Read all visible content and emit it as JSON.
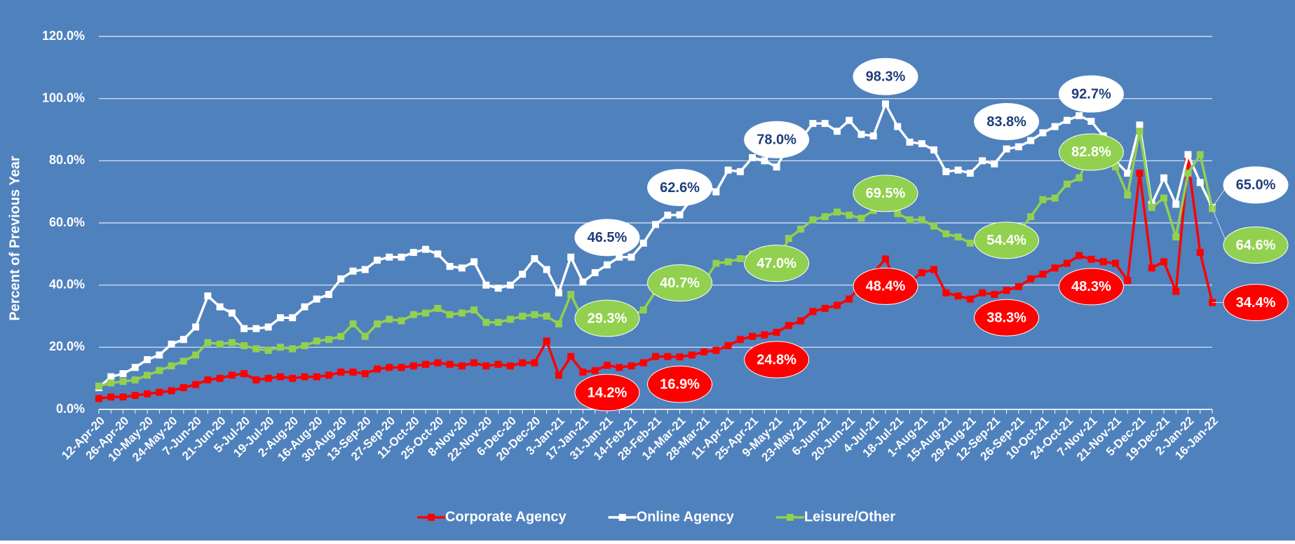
{
  "chart_data": {
    "type": "line",
    "y_label": "Percent of Previous Year",
    "categories": [
      "12-Apr-20",
      null,
      "26-Apr-20",
      null,
      "10-May-20",
      null,
      "24-May-20",
      null,
      "7-Jun-20",
      null,
      "21-Jun-20",
      null,
      "5-Jul-20",
      null,
      "19-Jul-20",
      null,
      "2-Aug-20",
      null,
      "16-Aug-20",
      null,
      "30-Aug-20",
      null,
      "13-Sep-20",
      null,
      "27-Sep-20",
      null,
      "11-Oct-20",
      null,
      "25-Oct-20",
      null,
      "8-Nov-20",
      null,
      "22-Nov-20",
      null,
      "6-Dec-20",
      null,
      "20-Dec-20",
      null,
      "3-Jan-21",
      null,
      "17-Jan-21",
      null,
      "31-Jan-21",
      null,
      "14-Feb-21",
      null,
      "28-Feb-21",
      null,
      "14-Mar-21",
      null,
      "28-Mar-21",
      null,
      "11-Apr-21",
      null,
      "25-Apr-21",
      null,
      "9-May-21",
      null,
      "23-May-21",
      null,
      "6-Jun-21",
      null,
      "20-Jun-21",
      null,
      "4-Jul-21",
      null,
      "18-Jul-21",
      null,
      "1-Aug-21",
      null,
      "15-Aug-21",
      null,
      "29-Aug-21",
      null,
      "12-Sep-21",
      null,
      "26-Sep-21",
      null,
      "10-Oct-21",
      null,
      "24-Oct-21",
      null,
      "7-Nov-21",
      null,
      "21-Nov-21",
      null,
      "5-Dec-21",
      null,
      "19-Dec-21",
      null,
      "2-Jan-22",
      null,
      "16-Jan-22"
    ],
    "series": [
      {
        "name": "Corporate Agency",
        "color": "#ff0000",
        "label_text_color": "#ffffff",
        "values": [
          3.5,
          4,
          4,
          4.5,
          5,
          5.5,
          6,
          7,
          8,
          9.5,
          10,
          11,
          11.5,
          9.5,
          10,
          10.5,
          10,
          10.5,
          10.5,
          11,
          12,
          12,
          11.5,
          13,
          13.5,
          13.5,
          14,
          14.5,
          15,
          14.5,
          14,
          15,
          14,
          14.5,
          14,
          15,
          15,
          22,
          11,
          17,
          12,
          12.5,
          14.2,
          13.5,
          14,
          15,
          17,
          17,
          16.9,
          17.5,
          18.5,
          19,
          20.5,
          22.5,
          23.5,
          24,
          24.8,
          27,
          28.5,
          31.5,
          32.5,
          33.5,
          35.5,
          40,
          44,
          48.4,
          40,
          41,
          44,
          45,
          37.5,
          36.5,
          35.5,
          37.5,
          37,
          38.3,
          39.5,
          42,
          43.5,
          45.5,
          47,
          49.5,
          48.3,
          47.5,
          47,
          41.5,
          76,
          45.5,
          47.5,
          38,
          80,
          50.5,
          34.4
        ],
        "value_labels": [
          null,
          null,
          null,
          null,
          null,
          null,
          null,
          null,
          null,
          null,
          null,
          null,
          null,
          null,
          null,
          null,
          null,
          null,
          null,
          null,
          null,
          null,
          null,
          null,
          null,
          null,
          null,
          null,
          null,
          null,
          null,
          null,
          null,
          null,
          null,
          null,
          null,
          null,
          null,
          null,
          null,
          null,
          "14.2%",
          null,
          null,
          null,
          null,
          null,
          "16.9%",
          null,
          null,
          null,
          null,
          null,
          null,
          null,
          "24.8%",
          null,
          null,
          null,
          null,
          null,
          null,
          null,
          null,
          "48.4%",
          null,
          null,
          null,
          null,
          null,
          null,
          null,
          null,
          null,
          "38.3%",
          null,
          null,
          null,
          null,
          null,
          null,
          "48.3%",
          null,
          null,
          null,
          null,
          null,
          null,
          null,
          null,
          null,
          "34.4%"
        ]
      },
      {
        "name": "Online Agency",
        "color": "#ffffff",
        "label_text_color": "#1f3f7a",
        "values": [
          7,
          10.5,
          11.5,
          13.5,
          16,
          17.5,
          21,
          22.5,
          26.5,
          36.5,
          33,
          31,
          26,
          26,
          26.5,
          29.5,
          29.5,
          33,
          35.5,
          37,
          42,
          44.5,
          45,
          48,
          49,
          49,
          50.5,
          51.5,
          50,
          46,
          45.5,
          47.5,
          40,
          39,
          40,
          43.5,
          48.5,
          45,
          37.5,
          49,
          41,
          44,
          46.5,
          49,
          49,
          53.5,
          59.5,
          62.5,
          62.6,
          68,
          73,
          70,
          77,
          76.5,
          81,
          80,
          78,
          85,
          87,
          92,
          92,
          89.5,
          93,
          88.5,
          88,
          98.3,
          91,
          86,
          85.5,
          83.5,
          76.5,
          77,
          76,
          80,
          79,
          83.8,
          84.5,
          86.5,
          89,
          91,
          93,
          94.5,
          92.7,
          88,
          80,
          76,
          91.5,
          66,
          74.5,
          66,
          82,
          73,
          65
        ],
        "value_labels": [
          null,
          null,
          null,
          null,
          null,
          null,
          null,
          null,
          null,
          null,
          null,
          null,
          null,
          null,
          null,
          null,
          null,
          null,
          null,
          null,
          null,
          null,
          null,
          null,
          null,
          null,
          null,
          null,
          null,
          null,
          null,
          null,
          null,
          null,
          null,
          null,
          null,
          null,
          null,
          null,
          null,
          null,
          "46.5%",
          null,
          null,
          null,
          null,
          null,
          "62.6%",
          null,
          null,
          null,
          null,
          null,
          null,
          null,
          "78.0%",
          null,
          null,
          null,
          null,
          null,
          null,
          null,
          null,
          "98.3%",
          null,
          null,
          null,
          null,
          null,
          null,
          null,
          null,
          null,
          "83.8%",
          null,
          null,
          null,
          null,
          null,
          null,
          "92.7%",
          null,
          null,
          null,
          null,
          null,
          null,
          null,
          null,
          null,
          "65.0%"
        ]
      },
      {
        "name": "Leisure/Other",
        "color": "#92d050",
        "label_text_color": "#ffffff",
        "values": [
          7.5,
          8.5,
          9,
          9.5,
          11,
          12.5,
          14,
          15.5,
          17.5,
          21.5,
          21,
          21.5,
          20.5,
          19.5,
          19,
          20,
          19.5,
          20.5,
          22,
          22.5,
          23.5,
          27.5,
          23.5,
          27.5,
          29,
          28.5,
          30.5,
          31,
          32.5,
          30.5,
          31,
          32,
          28,
          28,
          29,
          30,
          30.5,
          30,
          27.5,
          37,
          29,
          29.5,
          29.3,
          30,
          30,
          32,
          38,
          40.5,
          40.7,
          43,
          41,
          47,
          47.5,
          48.5,
          50,
          49,
          47,
          55,
          58,
          61,
          62,
          63.5,
          62.5,
          61.5,
          64,
          69.5,
          63,
          61,
          61,
          59,
          56.5,
          55.5,
          53.5,
          54.5,
          55.5,
          54.4,
          57,
          62,
          67.5,
          68,
          72.5,
          74.5,
          82.8,
          80,
          78,
          69,
          89.5,
          65,
          68,
          55.5,
          76,
          82,
          64.6
        ],
        "value_labels": [
          null,
          null,
          null,
          null,
          null,
          null,
          null,
          null,
          null,
          null,
          null,
          null,
          null,
          null,
          null,
          null,
          null,
          null,
          null,
          null,
          null,
          null,
          null,
          null,
          null,
          null,
          null,
          null,
          null,
          null,
          null,
          null,
          null,
          null,
          null,
          null,
          null,
          null,
          null,
          null,
          null,
          null,
          "29.3%",
          null,
          null,
          null,
          null,
          null,
          "40.7%",
          null,
          null,
          null,
          null,
          null,
          null,
          null,
          "47.0%",
          null,
          null,
          null,
          null,
          null,
          null,
          null,
          null,
          "69.5%",
          null,
          null,
          null,
          null,
          null,
          null,
          null,
          null,
          null,
          "54.4%",
          null,
          null,
          null,
          null,
          null,
          null,
          "82.8%",
          null,
          null,
          null,
          null,
          null,
          null,
          null,
          null,
          null,
          "64.6%"
        ]
      }
    ],
    "ylim": [
      0,
      120
    ],
    "yticks": [
      {
        "value": 0,
        "label": "0.0%"
      },
      {
        "value": 20,
        "label": "20.0%"
      },
      {
        "value": 40,
        "label": "40.0%"
      },
      {
        "value": 60,
        "label": "60.0%"
      },
      {
        "value": 80,
        "label": "80.0%"
      },
      {
        "value": 100,
        "label": "100.0%"
      },
      {
        "value": 120,
        "label": "120.0%"
      }
    ],
    "grid": true,
    "legend": "bottom",
    "background": "#4f81bd"
  }
}
